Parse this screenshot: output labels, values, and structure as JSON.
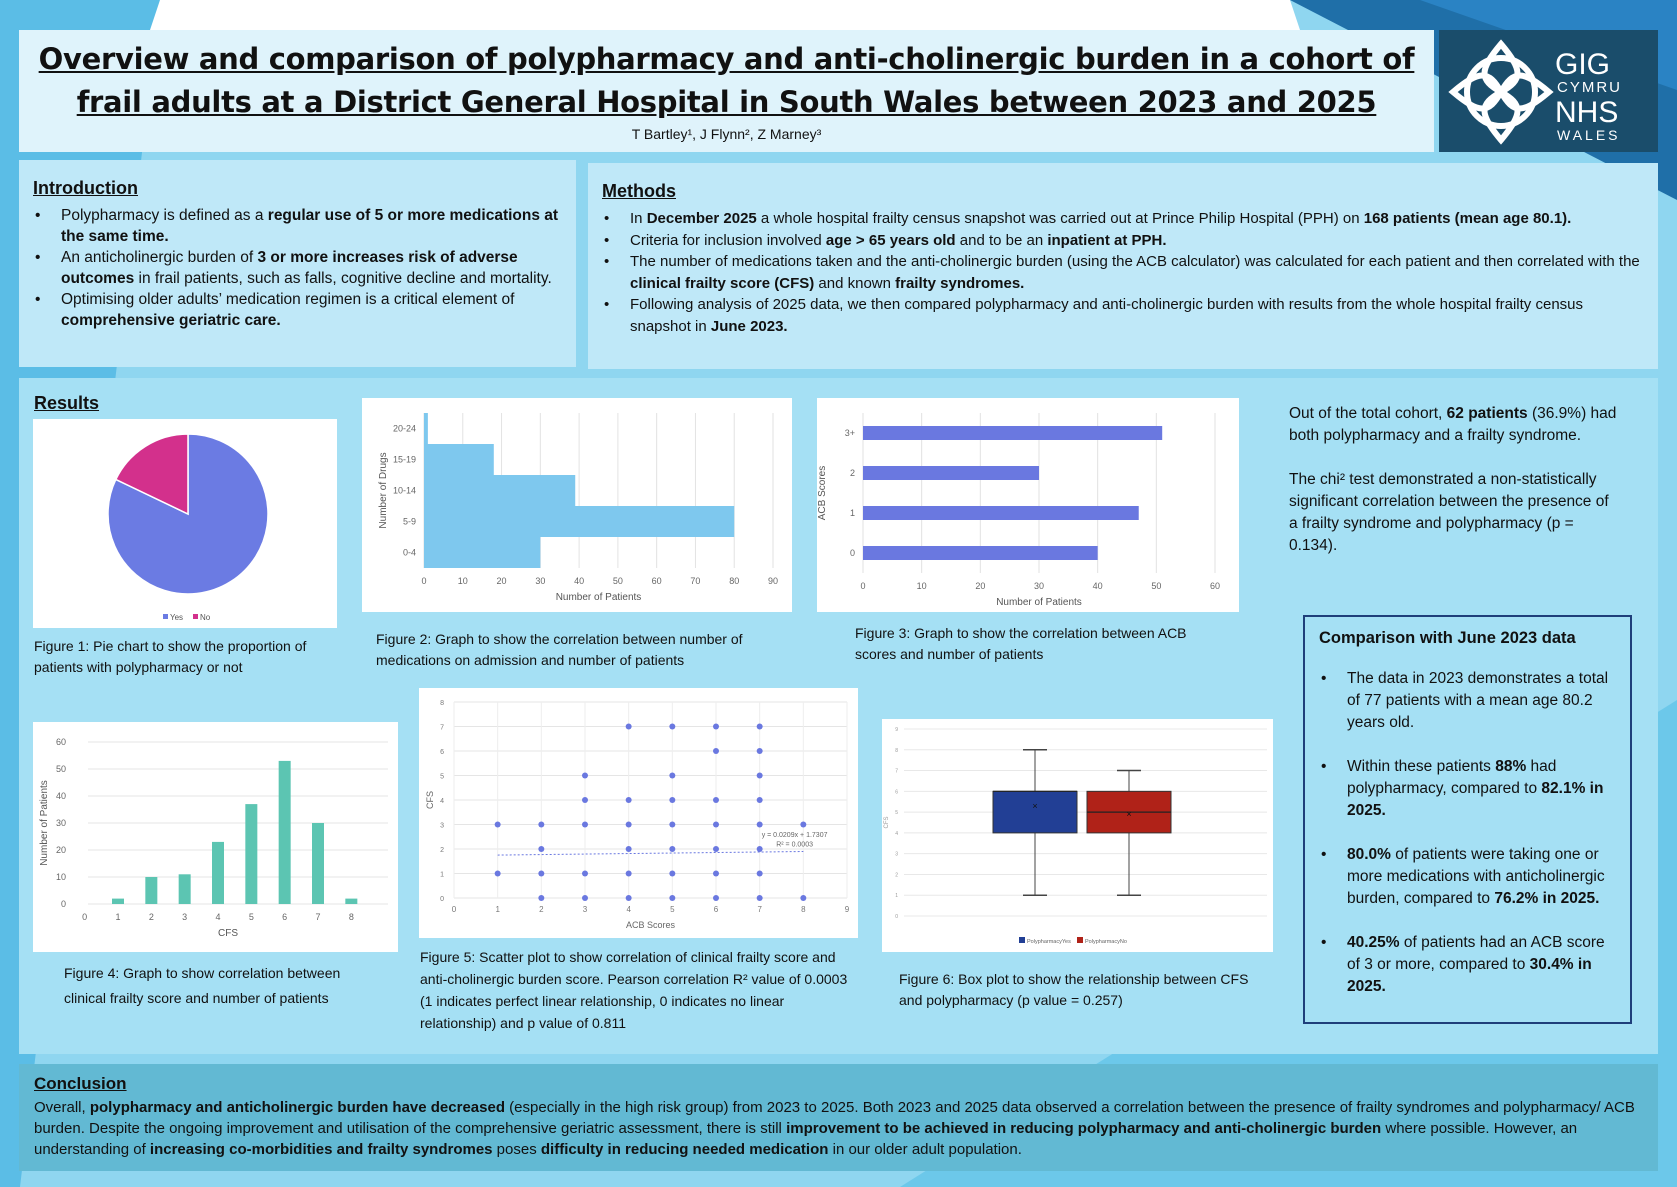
{
  "header": {
    "title": "Overview and comparison of polypharmacy and anti-cholinergic burden in a cohort of frail adults at a District General Hospital in South Wales between 2023 and 2025",
    "authors": "T Bartley¹, J Flynn², Z Marney³",
    "logo": {
      "line1": "GIG",
      "line2": "CYMRU",
      "line3": "NHS",
      "line4": "WALES"
    }
  },
  "colors": {
    "logo_bg": "#1a4d6b",
    "pie_yes": "#6b7be3",
    "pie_no": "#d3308c",
    "bars_blue": "#7ec8ee",
    "bars_acb": "#6a78e0",
    "bars_cfs": "#5cc5b2",
    "box_yes": "#223f95",
    "box_no": "#b02218"
  },
  "introduction": {
    "heading": "Introduction",
    "items": [
      [
        {
          "t": "Polypharmacy is defined as a "
        },
        {
          "t": "regular use of 5 or more medications at the same time.",
          "b": true
        }
      ],
      [
        {
          "t": "An anticholinergic burden of "
        },
        {
          "t": "3 or more increases risk of adverse outcomes",
          "b": true
        },
        {
          "t": " in frail patients, such as falls, cognitive decline and mortality."
        }
      ],
      [
        {
          "t": "Optimising older adults’ medication regimen is a critical element of "
        },
        {
          "t": "comprehensive geriatric care.",
          "b": true
        }
      ]
    ]
  },
  "methods": {
    "heading": "Methods",
    "items": [
      [
        {
          "t": "In "
        },
        {
          "t": "December 2025",
          "b": true
        },
        {
          "t": " a whole hospital frailty census snapshot was carried out at Prince Philip Hospital (PPH) on "
        },
        {
          "t": "168 patients (mean age 80.1).",
          "b": true
        }
      ],
      [
        {
          "t": "Criteria for inclusion involved "
        },
        {
          "t": "age > 65 years old",
          "b": true
        },
        {
          "t": " and to be an "
        },
        {
          "t": "inpatient at PPH.",
          "b": true
        }
      ],
      [
        {
          "t": "The number of medications taken and the anti-cholinergic burden (using the ACB calculator) was calculated for each patient and then correlated with the "
        },
        {
          "t": "clinical frailty score (CFS)",
          "b": true
        },
        {
          "t": " and known "
        },
        {
          "t": "frailty syndromes.",
          "b": true
        }
      ],
      [
        {
          "t": "Following analysis of 2025 data, we then compared polypharmacy and anti-cholinergic burden with results from the whole hospital frailty census snapshot in "
        },
        {
          "t": "June 2023.",
          "b": true
        }
      ]
    ]
  },
  "results": {
    "heading": "Results",
    "captions": {
      "fig1": "Figure 1: Pie chart to show the proportion of patients with polypharmacy or not",
      "fig2": "Figure 2: Graph to show the correlation between number of medications on admission and number of patients",
      "fig3": "Figure 3: Graph to show the correlation between ACB scores and number of patients",
      "fig4": "Figure 4: Graph to show correlation between clinical frailty score and number of patients",
      "fig5": "Figure 5: Scatter plot to show correlation of clinical frailty score and anti-cholinergic burden score. Pearson correlation R² value of 0.0003 (1 indicates perfect linear relationship, 0 indicates no linear relationship) and p value of 0.811",
      "fig6": "Figure 6: Box plot to show the relationship between CFS and polypharmacy (p value = 0.257)"
    },
    "summary": [
      [
        {
          "t": "Out of the total cohort, "
        },
        {
          "t": "62 patients",
          "b": true
        },
        {
          "t": " (36.9%) had both polypharmacy and a frailty syndrome."
        }
      ],
      [
        {
          "t": "The chi² test demonstrated a non-statistically significant correlation between the presence of a frailty syndrome and polypharmacy (p = 0.134)."
        }
      ]
    ],
    "comparison": {
      "heading": "Comparison with June 2023 data",
      "items": [
        [
          {
            "t": "The data in 2023 demonstrates a total of 77 patients with a mean age 80.2 years old."
          }
        ],
        [
          {
            "t": "Within these patients "
          },
          {
            "t": "88%",
            "b": true
          },
          {
            "t": " had polypharmacy, compared to "
          },
          {
            "t": "82.1% in 2025.",
            "b": true
          }
        ],
        [
          {
            "t": "80.0%",
            "b": true
          },
          {
            "t": " of patients were taking one or more medications with anticholinergic burden, compared to "
          },
          {
            "t": "76.2% in 2025.",
            "b": true
          }
        ],
        [
          {
            "t": "40.25%",
            "b": true
          },
          {
            "t": " of patients had an ACB score of 3 or more, compared to "
          },
          {
            "t": "30.4% in 2025.",
            "b": true
          }
        ]
      ]
    }
  },
  "conclusion": {
    "heading": "Conclusion",
    "text": [
      {
        "t": "Overall, "
      },
      {
        "t": "polypharmacy and anticholinergic burden have decreased",
        "b": true
      },
      {
        "t": " (especially in the high risk group) from 2023 to 2025. Both 2023 and 2025 data observed a correlation between the presence of frailty syndromes and polypharmacy/ ACB burden. Despite the ongoing improvement and utilisation of the comprehensive geriatric assessment, there is still "
      },
      {
        "t": "improvement to be achieved in reducing polypharmacy and anti-cholinergic burden",
        "b": true
      },
      {
        "t": " where possible. However, an understanding of "
      },
      {
        "t": "increasing co-morbidities and frailty syndromes",
        "b": true
      },
      {
        "t": " poses "
      },
      {
        "t": "difficulty in reducing needed medication",
        "b": true
      },
      {
        "t": " in our older adult population."
      }
    ]
  },
  "chart_data": [
    {
      "id": "fig1",
      "type": "pie",
      "categories": [
        "Yes",
        "No"
      ],
      "values": [
        82.1,
        17.9
      ],
      "legend": "bottom"
    },
    {
      "id": "fig2",
      "type": "bar",
      "orientation": "horizontal",
      "categories": [
        "0-4",
        "5-9",
        "10-14",
        "15-19",
        "20-24"
      ],
      "values": [
        30,
        80,
        39,
        18,
        1
      ],
      "xlabel": "Number of Patients",
      "ylabel": "Number of Drugs",
      "xlim": [
        0,
        90
      ],
      "xticks": [
        0,
        10,
        20,
        30,
        40,
        50,
        60,
        70,
        80,
        90
      ],
      "grid": true
    },
    {
      "id": "fig3",
      "type": "bar",
      "orientation": "horizontal",
      "categories": [
        "0",
        "1",
        "2",
        "3+"
      ],
      "values": [
        40,
        47,
        30,
        51
      ],
      "xlabel": "Number of Patients",
      "ylabel": "ACB Scores",
      "xlim": [
        0,
        60
      ],
      "xticks": [
        0,
        10,
        20,
        30,
        40,
        50,
        60
      ],
      "grid": true
    },
    {
      "id": "fig4",
      "type": "bar",
      "categories": [
        "0",
        "1",
        "2",
        "3",
        "4",
        "5",
        "6",
        "7",
        "8"
      ],
      "values": [
        0,
        2,
        10,
        11,
        23,
        37,
        53,
        30,
        2
      ],
      "xlabel": "CFS",
      "ylabel": "Number of Patients",
      "ylim": [
        0,
        60
      ],
      "yticks": [
        0,
        10,
        20,
        30,
        40,
        50,
        60
      ],
      "grid": true
    },
    {
      "id": "fig5",
      "type": "scatter",
      "xlabel": "ACB Scores",
      "ylabel": "CFS",
      "xlim": [
        0,
        9
      ],
      "ylim": [
        0,
        8
      ],
      "grid": true,
      "points": [
        [
          1,
          3
        ],
        [
          1,
          1
        ],
        [
          2,
          3
        ],
        [
          2,
          2
        ],
        [
          2,
          1
        ],
        [
          2,
          0
        ],
        [
          3,
          5
        ],
        [
          3,
          4
        ],
        [
          3,
          3
        ],
        [
          3,
          1
        ],
        [
          3,
          0
        ],
        [
          4,
          7
        ],
        [
          4,
          4
        ],
        [
          4,
          3
        ],
        [
          4,
          2
        ],
        [
          4,
          1
        ],
        [
          4,
          0
        ],
        [
          5,
          7
        ],
        [
          5,
          5
        ],
        [
          5,
          4
        ],
        [
          5,
          3
        ],
        [
          5,
          2
        ],
        [
          5,
          1
        ],
        [
          5,
          0
        ],
        [
          6,
          7
        ],
        [
          6,
          6
        ],
        [
          6,
          4
        ],
        [
          6,
          3
        ],
        [
          6,
          2
        ],
        [
          6,
          1
        ],
        [
          6,
          0
        ],
        [
          7,
          7
        ],
        [
          7,
          6
        ],
        [
          7,
          5
        ],
        [
          7,
          4
        ],
        [
          7,
          3
        ],
        [
          7,
          2
        ],
        [
          7,
          1
        ],
        [
          7,
          0
        ],
        [
          8,
          3
        ],
        [
          8,
          0
        ]
      ],
      "trendline": {
        "slope": 0.0209,
        "intercept": 1.7307,
        "equation": "y = 0.0209x + 1.7307",
        "r2": "R² = 0.0003"
      }
    },
    {
      "id": "fig6",
      "type": "box",
      "ylabel": "CFS",
      "ylim": [
        0,
        9
      ],
      "legend": "bottom",
      "series": [
        {
          "name": "PolypharmacyYes",
          "min": 1,
          "q1": 4,
          "median": 6,
          "q3": 6,
          "max": 8,
          "mean": 5.3
        },
        {
          "name": "PolypharmacyNo",
          "min": 1,
          "q1": 4,
          "median": 5,
          "q3": 6,
          "max": 7,
          "mean": 4.9
        }
      ]
    }
  ]
}
